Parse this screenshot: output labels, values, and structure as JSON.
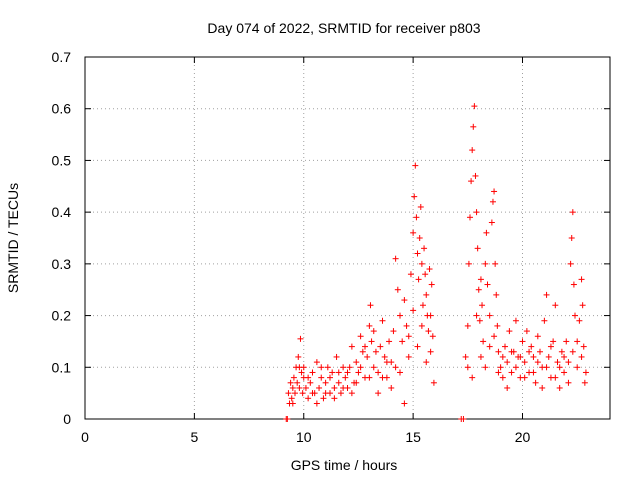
{
  "chart_data": {
    "type": "scatter",
    "title": "Day 074 of 2022, SRMTID for receiver p803",
    "xlabel": "GPS time / hours",
    "ylabel": "SRMTID / TECUs",
    "xlim": [
      0,
      24
    ],
    "ylim": [
      0,
      0.7
    ],
    "xticks": [
      0,
      5,
      10,
      15,
      20
    ],
    "yticks": [
      0,
      0.1,
      0.2,
      0.3,
      0.4,
      0.5,
      0.6,
      0.7
    ],
    "xtick_labels": [
      "0",
      "5",
      "10",
      "15",
      "20"
    ],
    "ytick_labels": [
      "0",
      "0.1",
      "0.2",
      "0.3",
      "0.4",
      "0.5",
      "0.6",
      "0.7"
    ],
    "grid": true,
    "marker": "plus",
    "color": "#ff0000",
    "series": [
      {
        "name": "SRMTID",
        "points": [
          [
            9.2,
            0.0
          ],
          [
            9.25,
            0.0
          ],
          [
            17.2,
            0.0
          ],
          [
            17.3,
            0.0
          ],
          [
            9.3,
            0.05
          ],
          [
            9.35,
            0.03
          ],
          [
            9.4,
            0.07
          ],
          [
            9.45,
            0.04
          ],
          [
            9.5,
            0.06
          ],
          [
            9.55,
            0.08
          ],
          [
            9.6,
            0.05
          ],
          [
            9.65,
            0.1
          ],
          [
            9.7,
            0.07
          ],
          [
            9.75,
            0.12
          ],
          [
            9.8,
            0.06
          ],
          [
            9.85,
            0.155
          ],
          [
            9.9,
            0.09
          ],
          [
            9.95,
            0.05
          ],
          [
            10.0,
            0.08
          ],
          [
            10.1,
            0.06
          ],
          [
            10.2,
            0.04
          ],
          [
            10.3,
            0.07
          ],
          [
            10.4,
            0.09
          ],
          [
            10.5,
            0.05
          ],
          [
            10.6,
            0.11
          ],
          [
            10.7,
            0.06
          ],
          [
            10.8,
            0.08
          ],
          [
            10.9,
            0.04
          ],
          [
            11.0,
            0.07
          ],
          [
            11.1,
            0.1
          ],
          [
            11.2,
            0.05
          ],
          [
            11.3,
            0.09
          ],
          [
            11.4,
            0.06
          ],
          [
            11.5,
            0.12
          ],
          [
            11.6,
            0.07
          ],
          [
            11.7,
            0.05
          ],
          [
            11.8,
            0.1
          ],
          [
            11.9,
            0.08
          ],
          [
            12.0,
            0.06
          ],
          [
            12.1,
            0.1
          ],
          [
            12.2,
            0.14
          ],
          [
            12.3,
            0.07
          ],
          [
            12.4,
            0.11
          ],
          [
            12.5,
            0.09
          ],
          [
            12.6,
            0.16
          ],
          [
            12.7,
            0.13
          ],
          [
            12.8,
            0.08
          ],
          [
            12.9,
            0.12
          ],
          [
            13.0,
            0.18
          ],
          [
            13.05,
            0.22
          ],
          [
            13.1,
            0.15
          ],
          [
            13.2,
            0.1
          ],
          [
            13.3,
            0.13
          ],
          [
            13.4,
            0.09
          ],
          [
            13.5,
            0.14
          ],
          [
            13.6,
            0.19
          ],
          [
            13.7,
            0.12
          ],
          [
            13.8,
            0.08
          ],
          [
            13.9,
            0.15
          ],
          [
            14.0,
            0.11
          ],
          [
            14.1,
            0.17
          ],
          [
            14.2,
            0.31
          ],
          [
            14.3,
            0.25
          ],
          [
            14.4,
            0.2
          ],
          [
            14.5,
            0.15
          ],
          [
            14.6,
            0.23
          ],
          [
            14.7,
            0.18
          ],
          [
            14.8,
            0.12
          ],
          [
            14.9,
            0.28
          ],
          [
            15.0,
            0.36
          ],
          [
            15.05,
            0.43
          ],
          [
            15.1,
            0.49
          ],
          [
            15.15,
            0.39
          ],
          [
            15.2,
            0.32
          ],
          [
            15.25,
            0.27
          ],
          [
            15.3,
            0.35
          ],
          [
            15.35,
            0.41
          ],
          [
            15.4,
            0.3
          ],
          [
            15.45,
            0.22
          ],
          [
            15.5,
            0.33
          ],
          [
            15.55,
            0.28
          ],
          [
            15.6,
            0.24
          ],
          [
            15.65,
            0.2
          ],
          [
            15.7,
            0.17
          ],
          [
            15.75,
            0.29
          ],
          [
            15.8,
            0.13
          ],
          [
            15.85,
            0.26
          ],
          [
            15.9,
            0.16
          ],
          [
            15.95,
            0.07
          ],
          [
            17.4,
            0.12
          ],
          [
            17.5,
            0.18
          ],
          [
            17.55,
            0.3
          ],
          [
            17.6,
            0.39
          ],
          [
            17.65,
            0.46
          ],
          [
            17.7,
            0.52
          ],
          [
            17.75,
            0.565
          ],
          [
            17.8,
            0.605
          ],
          [
            17.85,
            0.47
          ],
          [
            17.9,
            0.4
          ],
          [
            17.95,
            0.33
          ],
          [
            18.0,
            0.25
          ],
          [
            18.05,
            0.19
          ],
          [
            18.1,
            0.27
          ],
          [
            18.15,
            0.22
          ],
          [
            18.2,
            0.15
          ],
          [
            18.3,
            0.3
          ],
          [
            18.35,
            0.36
          ],
          [
            18.4,
            0.26
          ],
          [
            18.5,
            0.2
          ],
          [
            18.6,
            0.38
          ],
          [
            18.65,
            0.42
          ],
          [
            18.7,
            0.44
          ],
          [
            18.75,
            0.3
          ],
          [
            18.8,
            0.24
          ],
          [
            18.85,
            0.18
          ],
          [
            18.9,
            0.13
          ],
          [
            19.0,
            0.1
          ],
          [
            19.1,
            0.08
          ],
          [
            19.2,
            0.14
          ],
          [
            19.3,
            0.11
          ],
          [
            19.4,
            0.17
          ],
          [
            19.5,
            0.09
          ],
          [
            19.6,
            0.13
          ],
          [
            19.7,
            0.19
          ],
          [
            19.8,
            0.12
          ],
          [
            19.9,
            0.08
          ],
          [
            20.0,
            0.15
          ],
          [
            20.1,
            0.11
          ],
          [
            20.2,
            0.17
          ],
          [
            20.3,
            0.09
          ],
          [
            20.4,
            0.14
          ],
          [
            20.5,
            0.12
          ],
          [
            20.6,
            0.07
          ],
          [
            20.7,
            0.16
          ],
          [
            20.8,
            0.13
          ],
          [
            20.9,
            0.1
          ],
          [
            21.0,
            0.19
          ],
          [
            21.1,
            0.24
          ],
          [
            21.2,
            0.12
          ],
          [
            21.3,
            0.08
          ],
          [
            21.4,
            0.15
          ],
          [
            21.5,
            0.22
          ],
          [
            21.6,
            0.11
          ],
          [
            21.7,
            0.06
          ],
          [
            21.8,
            0.13
          ],
          [
            21.9,
            0.09
          ],
          [
            22.0,
            0.15
          ],
          [
            22.1,
            0.11
          ],
          [
            22.2,
            0.3
          ],
          [
            22.25,
            0.35
          ],
          [
            22.3,
            0.4
          ],
          [
            22.35,
            0.26
          ],
          [
            22.4,
            0.2
          ],
          [
            22.5,
            0.15
          ],
          [
            22.6,
            0.19
          ],
          [
            22.7,
            0.27
          ],
          [
            22.75,
            0.22
          ],
          [
            22.8,
            0.14
          ],
          [
            22.85,
            0.07
          ],
          [
            9.5,
            0.03
          ],
          [
            9.8,
            0.1
          ],
          [
            10.0,
            0.1
          ],
          [
            10.2,
            0.08
          ],
          [
            10.4,
            0.05
          ],
          [
            10.6,
            0.03
          ],
          [
            10.8,
            0.1
          ],
          [
            11.0,
            0.05
          ],
          [
            11.2,
            0.08
          ],
          [
            11.4,
            0.04
          ],
          [
            11.6,
            0.09
          ],
          [
            11.8,
            0.06
          ],
          [
            12.0,
            0.09
          ],
          [
            12.2,
            0.05
          ],
          [
            12.4,
            0.07
          ],
          [
            12.6,
            0.1
          ],
          [
            12.8,
            0.14
          ],
          [
            13.0,
            0.08
          ],
          [
            13.2,
            0.17
          ],
          [
            13.4,
            0.05
          ],
          [
            13.6,
            0.08
          ],
          [
            13.8,
            0.11
          ],
          [
            14.0,
            0.06
          ],
          [
            14.2,
            0.1
          ],
          [
            14.4,
            0.09
          ],
          [
            14.6,
            0.03
          ],
          [
            14.8,
            0.16
          ],
          [
            15.0,
            0.21
          ],
          [
            15.2,
            0.14
          ],
          [
            15.4,
            0.18
          ],
          [
            15.6,
            0.11
          ],
          [
            15.8,
            0.2
          ],
          [
            17.5,
            0.1
          ],
          [
            17.7,
            0.08
          ],
          [
            17.9,
            0.2
          ],
          [
            18.1,
            0.12
          ],
          [
            18.3,
            0.1
          ],
          [
            18.5,
            0.14
          ],
          [
            18.7,
            0.16
          ],
          [
            18.9,
            0.09
          ],
          [
            19.1,
            0.12
          ],
          [
            19.3,
            0.06
          ],
          [
            19.5,
            0.13
          ],
          [
            19.7,
            0.1
          ],
          [
            19.9,
            0.12
          ],
          [
            20.1,
            0.08
          ],
          [
            20.3,
            0.13
          ],
          [
            20.5,
            0.09
          ],
          [
            20.7,
            0.11
          ],
          [
            20.9,
            0.06
          ],
          [
            21.1,
            0.1
          ],
          [
            21.3,
            0.14
          ],
          [
            21.5,
            0.08
          ],
          [
            21.7,
            0.1
          ],
          [
            21.9,
            0.12
          ],
          [
            22.1,
            0.07
          ],
          [
            22.3,
            0.13
          ],
          [
            22.5,
            0.1
          ],
          [
            22.7,
            0.12
          ],
          [
            22.9,
            0.09
          ]
        ]
      }
    ]
  }
}
